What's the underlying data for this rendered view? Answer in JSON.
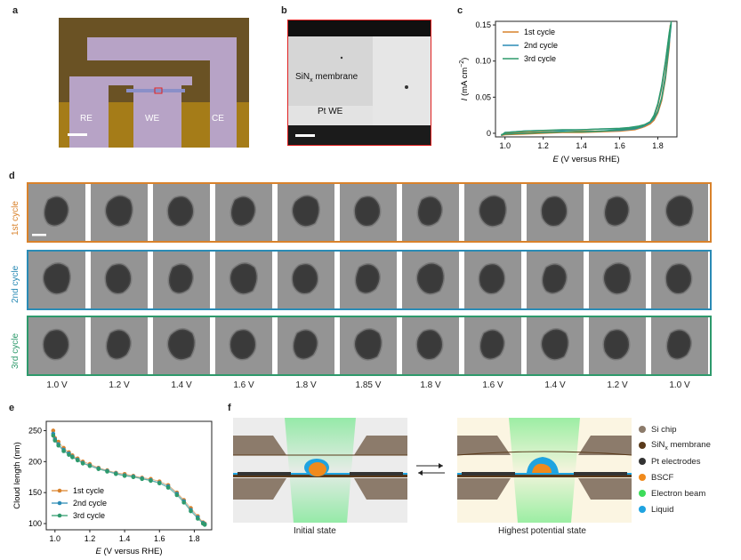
{
  "panels": {
    "a": {
      "label": "a",
      "electrodes": [
        "RE",
        "WE",
        "CE"
      ]
    },
    "b": {
      "label": "b",
      "membrane_label_pre": "SiN",
      "membrane_label_sub": "x",
      "membrane_label_post": " membrane",
      "we_label": "Pt WE"
    },
    "c": {
      "label": "c"
    },
    "d": {
      "label": "d",
      "rows": [
        {
          "label": "1st cycle",
          "color": "#d9822b"
        },
        {
          "label": "2nd cycle",
          "color": "#2a8bb5"
        },
        {
          "label": "3rd cycle",
          "color": "#2e9a6c"
        }
      ],
      "voltages": [
        "1.0 V",
        "1.2 V",
        "1.4 V",
        "1.6 V",
        "1.8 V",
        "1.85 V",
        "1.8 V",
        "1.6 V",
        "1.4 V",
        "1.2 V",
        "1.0 V"
      ]
    },
    "e": {
      "label": "e"
    },
    "f": {
      "label": "f",
      "legend": [
        {
          "pre": "Si chip",
          "sub": "",
          "post": "",
          "color": "#8c7b6b"
        },
        {
          "pre": "SiN",
          "sub": "x",
          "post": " membrane",
          "color": "#5a3a1a"
        },
        {
          "pre": "Pt electrodes",
          "sub": "",
          "post": "",
          "color": "#333333"
        },
        {
          "pre": "BSCF",
          "sub": "",
          "post": "",
          "color": "#f08a1c"
        },
        {
          "pre": "Electron beam",
          "sub": "",
          "post": "",
          "color": "#3ddc5a"
        },
        {
          "pre": "Liquid",
          "sub": "",
          "post": "",
          "color": "#1fa3e0"
        }
      ],
      "initial_caption": "Initial state",
      "highest_caption": "Highest potential state"
    }
  },
  "chart_data": [
    {
      "type": "line",
      "panel": "c",
      "xlabel_italic": "E",
      "xlabel_rest": " (V versus RHE)",
      "ylabel_italic": "I",
      "ylabel_rest": " (mA cm",
      "ylabel_sup": "−2",
      "ylabel_end": ")",
      "xlim": [
        0.95,
        1.9
      ],
      "ylim": [
        -0.005,
        0.155
      ],
      "xticks": [
        1.0,
        1.2,
        1.4,
        1.6,
        1.8
      ],
      "xtick_labels": [
        "1.0",
        "1.2",
        "1.4",
        "1.6",
        "1.8"
      ],
      "yticks": [
        0,
        0.05,
        0.1,
        0.15
      ],
      "ytick_labels": [
        "0",
        "0.05",
        "0.10",
        "0.15"
      ],
      "legend_position": "top-left",
      "series": [
        {
          "name": "1st cycle",
          "color": "#d9822b",
          "x": [
            0.98,
            1.0,
            1.1,
            1.2,
            1.3,
            1.4,
            1.5,
            1.6,
            1.65,
            1.7,
            1.73,
            1.76,
            1.78,
            1.8,
            1.82,
            1.84,
            1.86,
            1.865,
            1.86,
            1.84,
            1.82,
            1.8,
            1.78,
            1.76,
            1.72,
            1.68,
            1.6,
            1.5,
            1.4,
            1.3,
            1.2,
            1.1,
            1.0,
            0.98
          ],
          "y": [
            -0.002,
            0.0,
            0.001,
            0.002,
            0.002,
            0.003,
            0.003,
            0.004,
            0.005,
            0.007,
            0.009,
            0.013,
            0.018,
            0.028,
            0.045,
            0.075,
            0.12,
            0.15,
            0.135,
            0.095,
            0.062,
            0.038,
            0.023,
            0.014,
            0.008,
            0.005,
            0.003,
            0.002,
            0.001,
            0.001,
            0.0,
            -0.001,
            -0.002,
            -0.003
          ]
        },
        {
          "name": "2nd cycle",
          "color": "#2a8bb5",
          "x": [
            0.98,
            1.0,
            1.1,
            1.2,
            1.3,
            1.4,
            1.5,
            1.6,
            1.65,
            1.7,
            1.73,
            1.76,
            1.78,
            1.8,
            1.82,
            1.84,
            1.86,
            1.87,
            1.86,
            1.84,
            1.82,
            1.8,
            1.78,
            1.76,
            1.72,
            1.68,
            1.6,
            1.5,
            1.4,
            1.3,
            1.2,
            1.1,
            1.0,
            0.98
          ],
          "y": [
            -0.003,
            0.001,
            0.003,
            0.004,
            0.004,
            0.005,
            0.006,
            0.006,
            0.007,
            0.009,
            0.011,
            0.015,
            0.02,
            0.03,
            0.048,
            0.078,
            0.125,
            0.152,
            0.138,
            0.098,
            0.064,
            0.04,
            0.024,
            0.015,
            0.009,
            0.006,
            0.004,
            0.003,
            0.002,
            0.002,
            0.001,
            0.0,
            -0.001,
            -0.002
          ]
        },
        {
          "name": "3rd cycle",
          "color": "#2e9a6c",
          "x": [
            0.98,
            1.0,
            1.1,
            1.2,
            1.3,
            1.4,
            1.5,
            1.6,
            1.65,
            1.7,
            1.73,
            1.76,
            1.78,
            1.8,
            1.82,
            1.84,
            1.86,
            1.87,
            1.86,
            1.84,
            1.82,
            1.8,
            1.78,
            1.76,
            1.72,
            1.68,
            1.6,
            1.5,
            1.4,
            1.3,
            1.2,
            1.1,
            1.0,
            0.98
          ],
          "y": [
            -0.003,
            0.001,
            0.003,
            0.004,
            0.005,
            0.005,
            0.006,
            0.007,
            0.008,
            0.01,
            0.012,
            0.016,
            0.021,
            0.031,
            0.049,
            0.08,
            0.128,
            0.155,
            0.14,
            0.1,
            0.066,
            0.041,
            0.025,
            0.016,
            0.01,
            0.007,
            0.005,
            0.003,
            0.002,
            0.002,
            0.001,
            0.0,
            -0.001,
            -0.002
          ]
        }
      ]
    },
    {
      "type": "scatter",
      "panel": "e",
      "xlabel_italic": "E",
      "xlabel_rest": " (V versus RHE)",
      "ylabel": "Cloud length (nm)",
      "xlim": [
        0.95,
        1.9
      ],
      "ylim": [
        90,
        265
      ],
      "xticks": [
        1.0,
        1.2,
        1.4,
        1.6,
        1.8
      ],
      "xtick_labels": [
        "1.0",
        "1.2",
        "1.4",
        "1.6",
        "1.8"
      ],
      "yticks": [
        100,
        150,
        200,
        250
      ],
      "ytick_labels": [
        "100",
        "150",
        "200",
        "250"
      ],
      "legend_position": "bottom-left",
      "series": [
        {
          "name": "1st cycle",
          "color": "#d9822b",
          "x": [
            0.99,
            1.0,
            1.02,
            1.05,
            1.08,
            1.1,
            1.13,
            1.16,
            1.2,
            1.25,
            1.3,
            1.35,
            1.4,
            1.45,
            1.5,
            1.55,
            1.6,
            1.65,
            1.7,
            1.74,
            1.78,
            1.82,
            1.85,
            1.86
          ],
          "y": [
            250,
            238,
            232,
            222,
            215,
            210,
            205,
            200,
            196,
            190,
            186,
            182,
            180,
            177,
            174,
            172,
            168,
            162,
            150,
            138,
            125,
            112,
            102,
            100
          ]
        },
        {
          "name": "2nd cycle",
          "color": "#2a8bb5",
          "x": [
            0.99,
            1.0,
            1.02,
            1.05,
            1.08,
            1.1,
            1.13,
            1.16,
            1.2,
            1.25,
            1.3,
            1.35,
            1.4,
            1.45,
            1.5,
            1.55,
            1.6,
            1.65,
            1.7,
            1.74,
            1.78,
            1.82,
            1.85,
            1.86
          ],
          "y": [
            245,
            236,
            228,
            219,
            213,
            208,
            203,
            198,
            194,
            189,
            185,
            181,
            178,
            176,
            173,
            170,
            166,
            160,
            148,
            136,
            122,
            110,
            101,
            99
          ]
        },
        {
          "name": "3rd cycle",
          "color": "#2e9a6c",
          "x": [
            0.99,
            1.0,
            1.02,
            1.05,
            1.08,
            1.1,
            1.13,
            1.16,
            1.2,
            1.25,
            1.3,
            1.35,
            1.4,
            1.45,
            1.5,
            1.55,
            1.6,
            1.65,
            1.7,
            1.74,
            1.78,
            1.82,
            1.85,
            1.86
          ],
          "y": [
            242,
            234,
            226,
            217,
            211,
            207,
            202,
            197,
            193,
            188,
            184,
            180,
            177,
            175,
            172,
            169,
            165,
            158,
            146,
            134,
            120,
            108,
            100,
            98
          ]
        }
      ]
    }
  ]
}
